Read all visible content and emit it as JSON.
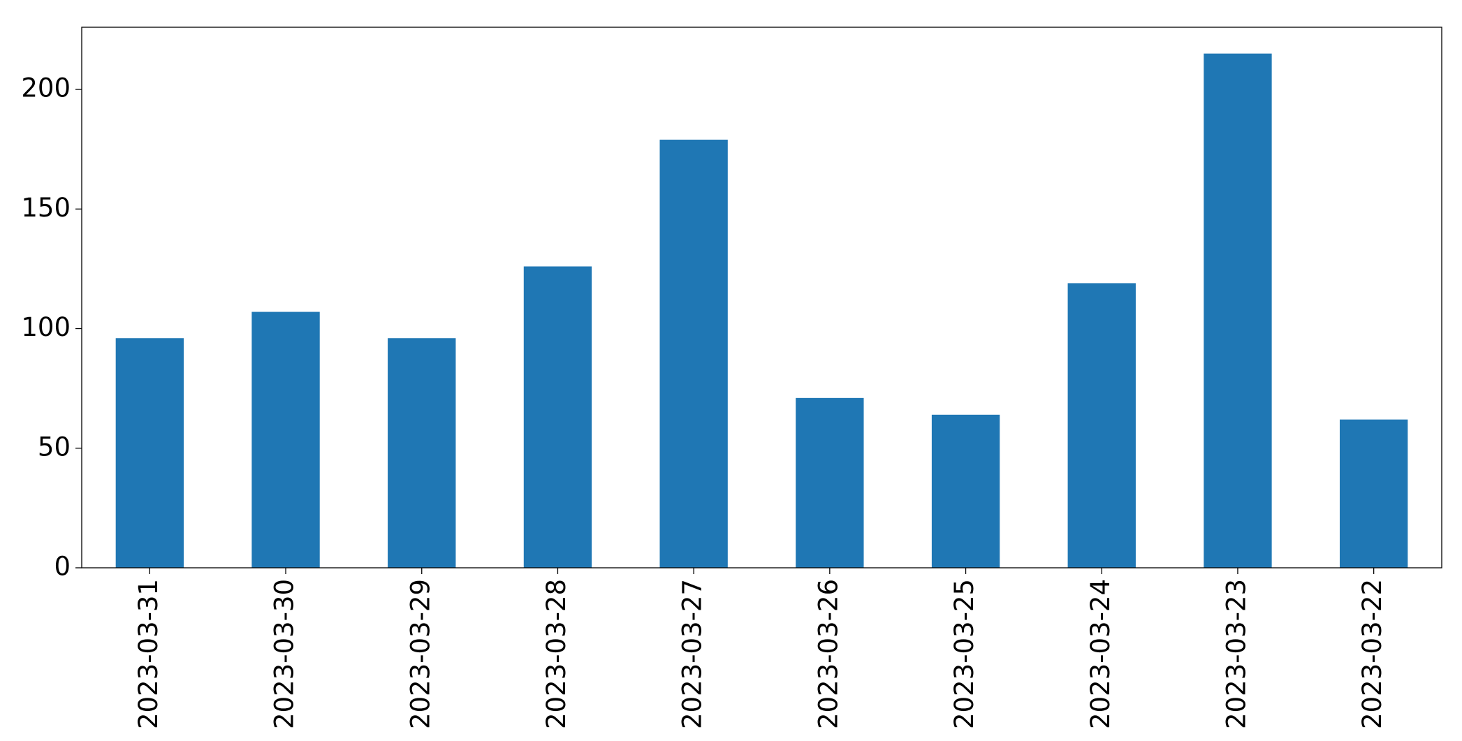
{
  "chart_data": {
    "type": "bar",
    "categories": [
      "2023-03-31",
      "2023-03-30",
      "2023-03-29",
      "2023-03-28",
      "2023-03-27",
      "2023-03-26",
      "2023-03-25",
      "2023-03-24",
      "2023-03-23",
      "2023-03-22"
    ],
    "values": [
      96,
      107,
      96,
      126,
      179,
      71,
      64,
      119,
      215,
      62
    ],
    "color": "#1f77b4",
    "ylim": [
      0,
      226
    ],
    "yticks": [
      0,
      50,
      100,
      150,
      200
    ],
    "grid": false
  }
}
